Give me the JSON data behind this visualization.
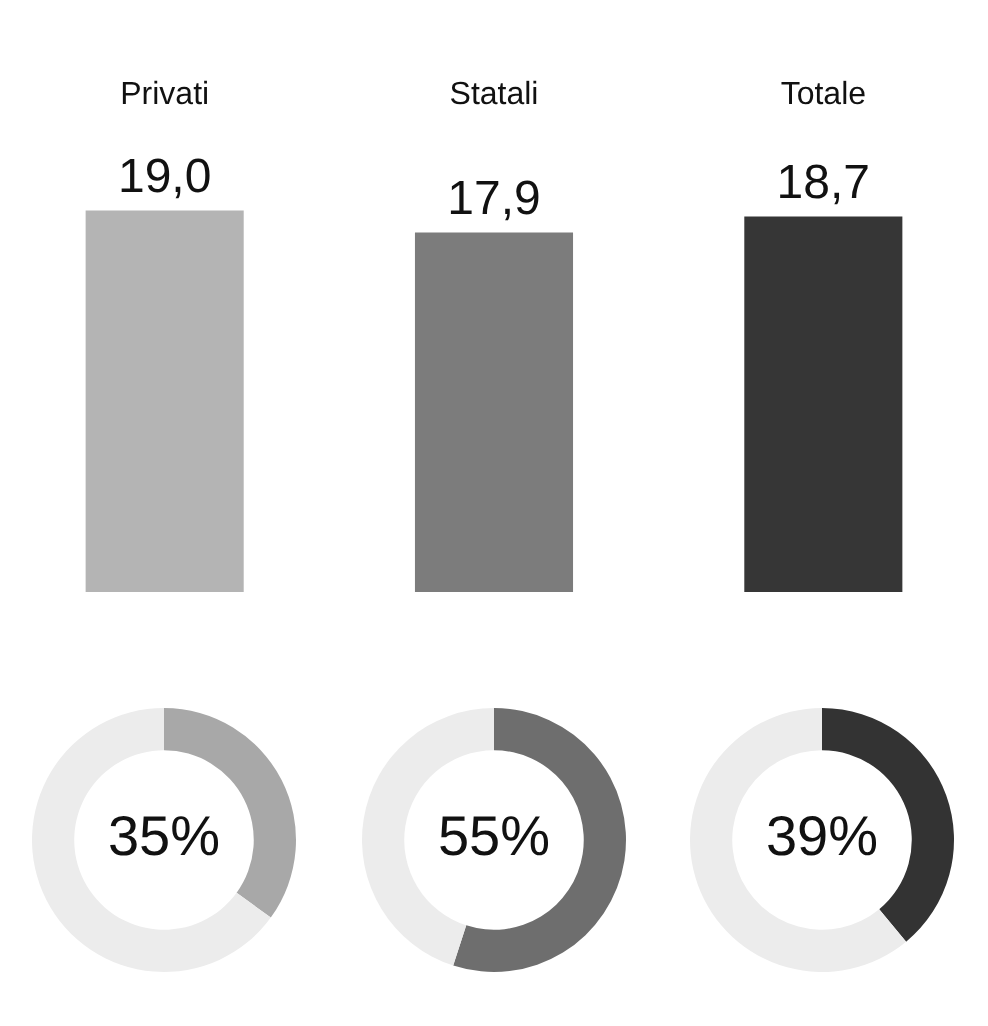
{
  "chart_data": [
    {
      "type": "bar",
      "categories": [
        "Privati",
        "Statali",
        "Totale"
      ],
      "values": [
        19.0,
        17.9,
        18.7
      ],
      "colors": [
        "#b4b4b4",
        "#7c7c7c",
        "#363636"
      ],
      "value_labels": [
        "19,0",
        "17,9",
        "18,7"
      ],
      "tick_labels": "x"
    },
    {
      "type": "donut",
      "categories": [
        null,
        null
      ],
      "values": [
        35,
        65
      ],
      "colors": [
        "#a8a8a8",
        "#ececec"
      ],
      "value_labels": [
        "35%",
        null
      ]
    },
    {
      "type": "donut",
      "categories": [
        null,
        null
      ],
      "values": [
        55,
        45
      ],
      "colors": [
        "#6e6e6e",
        "#ececec"
      ],
      "value_labels": [
        "55%",
        null
      ]
    },
    {
      "type": "donut",
      "categories": [
        null,
        null
      ],
      "values": [
        39,
        61
      ],
      "colors": [
        "#333333",
        "#ececec"
      ],
      "value_labels": [
        "39%",
        null
      ]
    }
  ]
}
